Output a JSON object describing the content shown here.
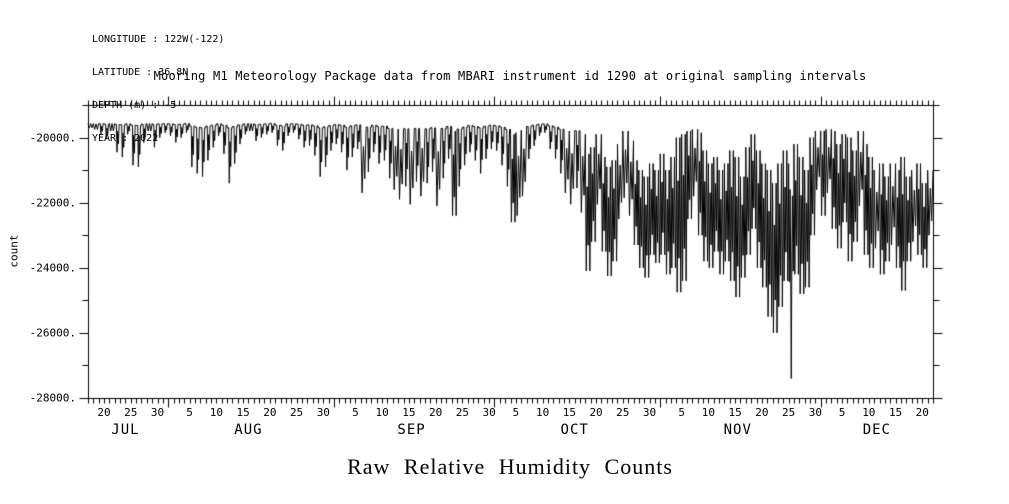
{
  "colors": {
    "background": "#ffffff",
    "foreground": "#000000"
  },
  "meta_block": {
    "lines": [
      "LONGITUDE : 122W(-122)",
      "LATITUDE : 36.8N",
      "DEPTH (m) : -5",
      "YEAR : 2022"
    ]
  },
  "chart_data": {
    "type": "line",
    "title": "Mooring M1 Meteorology Package data from MBARI instrument id 1290 at original sampling intervals",
    "figure_title": "Raw Relative Humidity Counts",
    "ylabel": "count",
    "line_color": "#000000",
    "grid": false,
    "ylim": [
      -28000,
      -19000
    ],
    "y_major_ticks": [
      -20000,
      -22000,
      -24000,
      -26000,
      -28000
    ],
    "y_major_tick_labels": [
      "-20000.",
      "-22000.",
      "-24000.",
      "-26000.",
      "-28000."
    ],
    "y_minor_ticks": [
      -19000,
      -21000,
      -23000,
      -25000,
      -27000
    ],
    "x_axis": {
      "start": "JUL 17 2022",
      "end": "DEC 22 2022",
      "total_days": 158,
      "month_start_days": [
        15,
        46,
        76,
        107,
        137
      ],
      "months": [
        {
          "label": "JUL",
          "center_day": 7
        },
        {
          "label": "AUG",
          "center_day": 30
        },
        {
          "label": "SEP",
          "center_day": 60.5
        },
        {
          "label": "OCT",
          "center_day": 91
        },
        {
          "label": "NOV",
          "center_day": 121.5
        },
        {
          "label": "DEC",
          "center_day": 147.5
        }
      ],
      "labeled_day_ticks": [
        [
          3,
          "20"
        ],
        [
          8,
          "25"
        ],
        [
          13,
          "30"
        ],
        [
          19,
          "5"
        ],
        [
          24,
          "10"
        ],
        [
          29,
          "15"
        ],
        [
          34,
          "20"
        ],
        [
          39,
          "25"
        ],
        [
          44,
          "30"
        ],
        [
          50,
          "5"
        ],
        [
          55,
          "10"
        ],
        [
          60,
          "15"
        ],
        [
          65,
          "20"
        ],
        [
          70,
          "25"
        ],
        [
          75,
          "30"
        ],
        [
          80,
          "5"
        ],
        [
          85,
          "10"
        ],
        [
          90,
          "15"
        ],
        [
          95,
          "20"
        ],
        [
          100,
          "25"
        ],
        [
          105,
          "30"
        ],
        [
          111,
          "5"
        ],
        [
          116,
          "10"
        ],
        [
          121,
          "15"
        ],
        [
          126,
          "20"
        ],
        [
          131,
          "25"
        ],
        [
          136,
          "30"
        ],
        [
          141,
          "5"
        ],
        [
          146,
          "10"
        ],
        [
          151,
          "15"
        ],
        [
          156,
          "20"
        ]
      ]
    },
    "series": [
      {
        "name": "raw relative humidity counts",
        "encoding": "daily max/min envelope, day 0 = first plotted day",
        "daily_max": [
          -19570,
          -19580,
          -19575,
          -19590,
          -19570,
          -19600,
          -19610,
          -19580,
          -19620,
          -19630,
          -19590,
          -19570,
          -19600,
          -19580,
          -19575,
          -19580,
          -19600,
          -19590,
          -19570,
          -19650,
          -19680,
          -19700,
          -19650,
          -19620,
          -19580,
          -19620,
          -19700,
          -19660,
          -19610,
          -19580,
          -19570,
          -19600,
          -19590,
          -19580,
          -19570,
          -19620,
          -19640,
          -19580,
          -19575,
          -19590,
          -19620,
          -19610,
          -19640,
          -19700,
          -19670,
          -19630,
          -19600,
          -19620,
          -19680,
          -19640,
          -19610,
          -19720,
          -19680,
          -19620,
          -19660,
          -19650,
          -19720,
          -19740,
          -19760,
          -19730,
          -19780,
          -19720,
          -19760,
          -19730,
          -19700,
          -19780,
          -19720,
          -19660,
          -19800,
          -19740,
          -19680,
          -19630,
          -19660,
          -19700,
          -19650,
          -19620,
          -19640,
          -19680,
          -19750,
          -19900,
          -19850,
          -19780,
          -19660,
          -19620,
          -19590,
          -19580,
          -19640,
          -19680,
          -19740,
          -19800,
          -19880,
          -19790,
          -19900,
          -20500,
          -20300,
          -19900,
          -20600,
          -20900,
          -20700,
          -20200,
          -19800,
          -20100,
          -20700,
          -21000,
          -21200,
          -20800,
          -21000,
          -20500,
          -21000,
          -20600,
          -20000,
          -19900,
          -19800,
          -19750,
          -19850,
          -20400,
          -20800,
          -20600,
          -21000,
          -20800,
          -20400,
          -20600,
          -21200,
          -20300,
          -19900,
          -20400,
          -20800,
          -21000,
          -21400,
          -20800,
          -20400,
          -20800,
          -20200,
          -20600,
          -21000,
          -20000,
          -19800,
          -19800,
          -19750,
          -19800,
          -20200,
          -19900,
          -20000,
          -20400,
          -19800,
          -20200,
          -20600,
          -21000,
          -20800,
          -21200,
          -20800,
          -21000,
          -20600,
          -21200,
          -21000,
          -20800,
          -21400,
          -21000
        ],
        "daily_min": [
          -19700,
          -19750,
          -19900,
          -20050,
          -19800,
          -20450,
          -20600,
          -19900,
          -20850,
          -20900,
          -20150,
          -19800,
          -20300,
          -20000,
          -19850,
          -19950,
          -20150,
          -20000,
          -19850,
          -20900,
          -21100,
          -21200,
          -20700,
          -20300,
          -19950,
          -20500,
          -21400,
          -20800,
          -20200,
          -19900,
          -19800,
          -20100,
          -20000,
          -19900,
          -19850,
          -20250,
          -20400,
          -19950,
          -19850,
          -20050,
          -20300,
          -20250,
          -20550,
          -21200,
          -20900,
          -20400,
          -20200,
          -20450,
          -21000,
          -20600,
          -20350,
          -21700,
          -21050,
          -20450,
          -20800,
          -20700,
          -21250,
          -21600,
          -21900,
          -21500,
          -22050,
          -21350,
          -21800,
          -21400,
          -21050,
          -22100,
          -21250,
          -20650,
          -22400,
          -21500,
          -20850,
          -20450,
          -20700,
          -21100,
          -20650,
          -20350,
          -20400,
          -20850,
          -21500,
          -22600,
          -22400,
          -21800,
          -20650,
          -20250,
          -19950,
          -19850,
          -20350,
          -20650,
          -21100,
          -21700,
          -22050,
          -21550,
          -22300,
          -24100,
          -23200,
          -22050,
          -23500,
          -24250,
          -23800,
          -22500,
          -21850,
          -22400,
          -23300,
          -24000,
          -24300,
          -23600,
          -23850,
          -23600,
          -24200,
          -24000,
          -24750,
          -24400,
          -22500,
          -21800,
          -23000,
          -23800,
          -24000,
          -23500,
          -24200,
          -23800,
          -24400,
          -24900,
          -24300,
          -23600,
          -22800,
          -24000,
          -24600,
          -25500,
          -26000,
          -25200,
          -24400,
          -27400,
          -24200,
          -24800,
          -24600,
          -23000,
          -21600,
          -22400,
          -21700,
          -22800,
          -23400,
          -22600,
          -23800,
          -23200,
          -22100,
          -23600,
          -24000,
          -23400,
          -24200,
          -23800,
          -23300,
          -24000,
          -24700,
          -23800,
          -23200,
          -23600,
          -24000,
          -23000
        ]
      }
    ]
  }
}
